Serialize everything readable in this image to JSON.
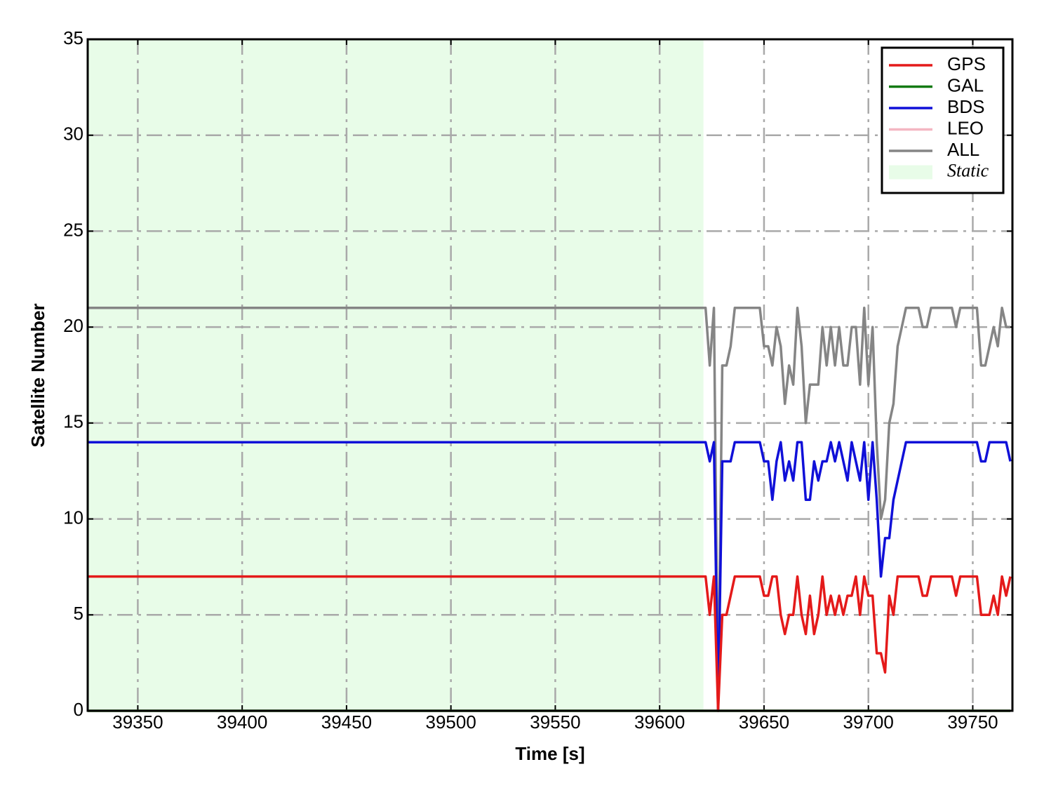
{
  "chart_data": {
    "type": "line",
    "xlabel": "Time [s]",
    "ylabel": "Satellite Number",
    "x": [
      39326,
      39620,
      39622,
      39624,
      39626,
      39628,
      39630,
      39632,
      39634,
      39636,
      39638,
      39640,
      39642,
      39644,
      39646,
      39648,
      39650,
      39652,
      39654,
      39656,
      39658,
      39660,
      39662,
      39664,
      39666,
      39668,
      39670,
      39672,
      39674,
      39676,
      39678,
      39680,
      39682,
      39684,
      39686,
      39688,
      39690,
      39692,
      39694,
      39696,
      39698,
      39700,
      39702,
      39704,
      39706,
      39708,
      39710,
      39712,
      39714,
      39716,
      39718,
      39720,
      39722,
      39724,
      39726,
      39728,
      39730,
      39732,
      39734,
      39736,
      39738,
      39740,
      39742,
      39744,
      39746,
      39748,
      39750,
      39752,
      39754,
      39756,
      39758,
      39760,
      39762,
      39764,
      39766,
      39768
    ],
    "series": [
      {
        "name": "GPS",
        "color": "#e41a1a",
        "values": [
          7,
          7,
          7,
          5,
          7,
          0,
          5,
          5,
          6,
          7,
          7,
          7,
          7,
          7,
          7,
          7,
          6,
          6,
          7,
          7,
          5,
          4,
          5,
          5,
          7,
          5,
          4,
          6,
          4,
          5,
          7,
          5,
          6,
          5,
          6,
          5,
          6,
          6,
          7,
          5,
          7,
          6,
          6,
          3,
          3,
          2,
          6,
          5,
          7,
          7,
          7,
          7,
          7,
          7,
          6,
          6,
          7,
          7,
          7,
          7,
          7,
          7,
          6,
          7,
          7,
          7,
          7,
          7,
          5,
          5,
          5,
          6,
          5,
          7,
          6,
          7
        ]
      },
      {
        "name": "GAL",
        "color": "#137a13",
        "values": [
          0,
          0,
          0,
          0,
          0,
          0,
          0,
          0,
          0,
          0,
          0,
          0,
          0,
          0,
          0,
          0,
          0,
          0,
          0,
          0,
          0,
          0,
          0,
          0,
          0,
          0,
          0,
          0,
          0,
          0,
          0,
          0,
          0,
          0,
          0,
          0,
          0,
          0,
          0,
          0,
          0,
          0,
          0,
          0,
          0,
          0,
          0,
          0,
          0,
          0,
          0,
          0,
          0,
          0,
          0,
          0,
          0,
          0,
          0,
          0,
          0,
          0,
          0,
          0,
          0,
          0,
          0,
          0,
          0,
          0,
          0,
          0,
          0,
          0,
          0,
          0
        ]
      },
      {
        "name": "BDS",
        "color": "#1010d8",
        "values": [
          14,
          14,
          14,
          13,
          14,
          0,
          13,
          13,
          13,
          14,
          14,
          14,
          14,
          14,
          14,
          14,
          13,
          13,
          11,
          13,
          14,
          12,
          13,
          12,
          14,
          14,
          11,
          11,
          13,
          12,
          13,
          13,
          14,
          13,
          14,
          13,
          12,
          14,
          13,
          12,
          14,
          11,
          14,
          11,
          7,
          9,
          9,
          11,
          12,
          13,
          14,
          14,
          14,
          14,
          14,
          14,
          14,
          14,
          14,
          14,
          14,
          14,
          14,
          14,
          14,
          14,
          14,
          14,
          13,
          13,
          14,
          14,
          14,
          14,
          14,
          13
        ]
      },
      {
        "name": "LEO",
        "color": "#f4b6c2",
        "values": [
          0,
          0,
          0,
          0,
          0,
          0,
          0,
          0,
          0,
          0,
          0,
          0,
          0,
          0,
          0,
          0,
          0,
          0,
          0,
          0,
          0,
          0,
          0,
          0,
          0,
          0,
          0,
          0,
          0,
          0,
          0,
          0,
          0,
          0,
          0,
          0,
          0,
          0,
          0,
          0,
          0,
          0,
          0,
          0,
          0,
          0,
          0,
          0,
          0,
          0,
          0,
          0,
          0,
          0,
          0,
          0,
          0,
          0,
          0,
          0,
          0,
          0,
          0,
          0,
          0,
          0,
          0,
          0,
          0,
          0,
          0,
          0,
          0,
          0,
          0,
          0
        ]
      },
      {
        "name": "ALL",
        "color": "#858585",
        "values": [
          21,
          21,
          21,
          18,
          21,
          0,
          18,
          18,
          19,
          21,
          21,
          21,
          21,
          21,
          21,
          21,
          19,
          19,
          18,
          20,
          19,
          16,
          18,
          17,
          21,
          19,
          15,
          17,
          17,
          17,
          20,
          18,
          20,
          18,
          20,
          18,
          18,
          20,
          20,
          17,
          21,
          17,
          20,
          14,
          10,
          11,
          15,
          16,
          19,
          20,
          21,
          21,
          21,
          21,
          20,
          20,
          21,
          21,
          21,
          21,
          21,
          21,
          20,
          21,
          21,
          21,
          21,
          21,
          18,
          18,
          19,
          20,
          19,
          21,
          20,
          20
        ]
      }
    ],
    "shaded_region": {
      "label": "Static",
      "start": 39326,
      "end": 39621,
      "color": "#e8fce8"
    },
    "xlim": [
      39326,
      39769
    ],
    "xticks": [
      39350,
      39400,
      39450,
      39500,
      39550,
      39600,
      39650,
      39700,
      39750
    ],
    "ylim": [
      0,
      35
    ],
    "yticks": [
      0,
      5,
      10,
      15,
      20,
      25,
      30,
      35
    ],
    "grid": true,
    "legend": "upper right"
  }
}
